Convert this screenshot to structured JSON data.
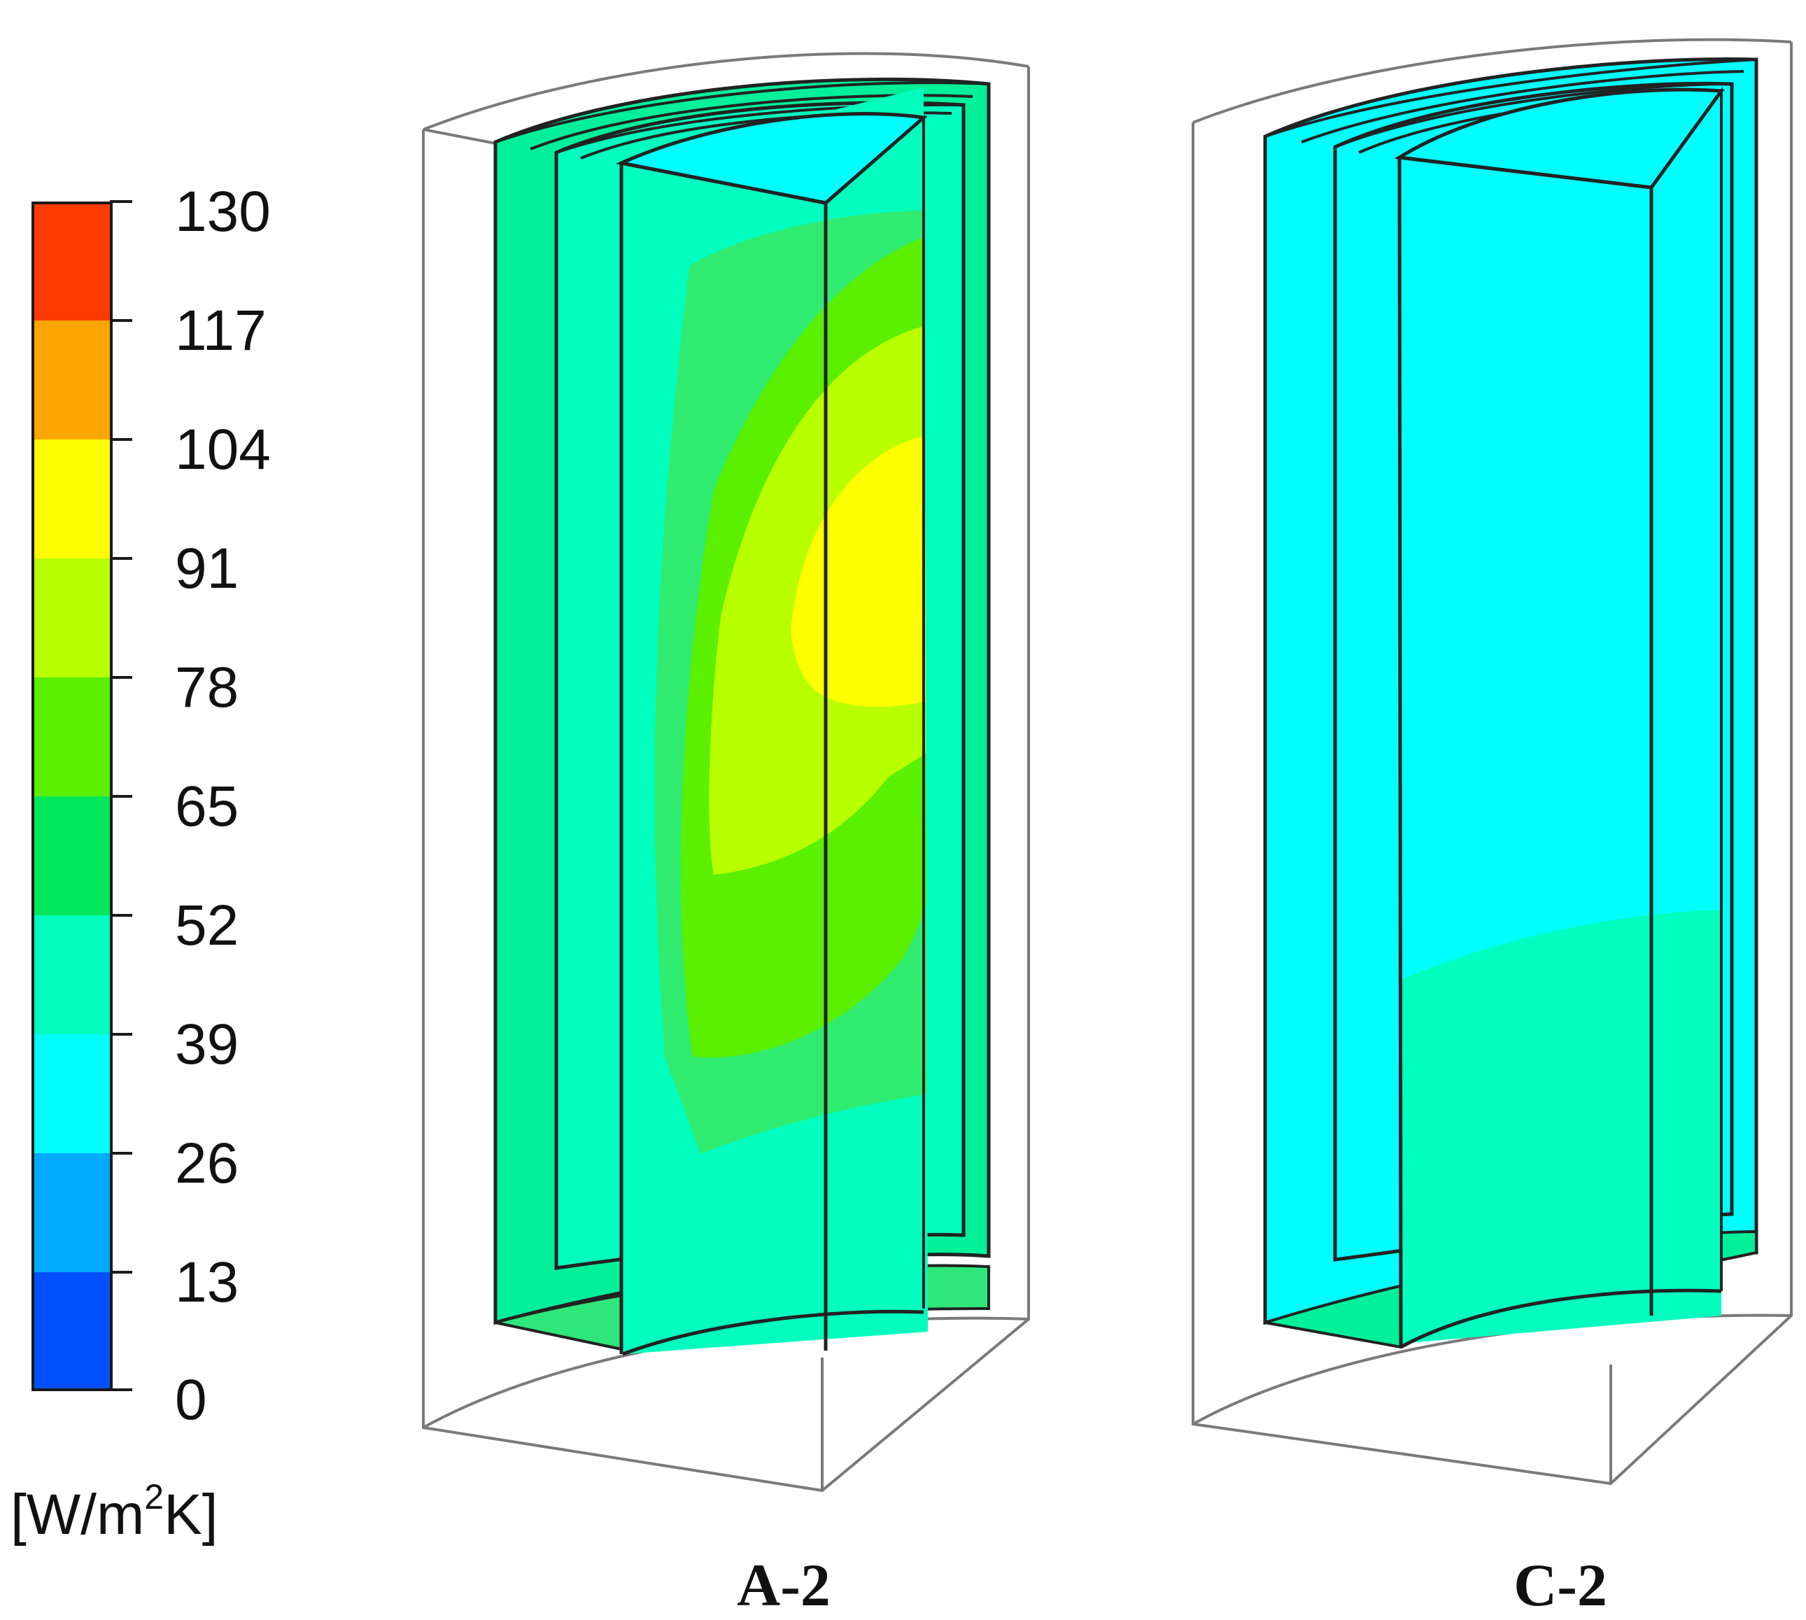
{
  "legend": {
    "ticks": [
      "130",
      "117",
      "104",
      "91",
      "78",
      "65",
      "52",
      "39",
      "26",
      "13",
      "0"
    ],
    "bands": [
      "#ff3c00",
      "#ffa500",
      "#ffff00",
      "#b8ff00",
      "#5af000",
      "#00e85a",
      "#00ffbe",
      "#00ffff",
      "#00aaff",
      "#0050ff"
    ],
    "unit_prefix": "[W/m",
    "unit_exp": "2",
    "unit_suffix": "K]"
  },
  "panels": [
    {
      "label": "A-2"
    },
    {
      "label": "C-2"
    }
  ]
}
